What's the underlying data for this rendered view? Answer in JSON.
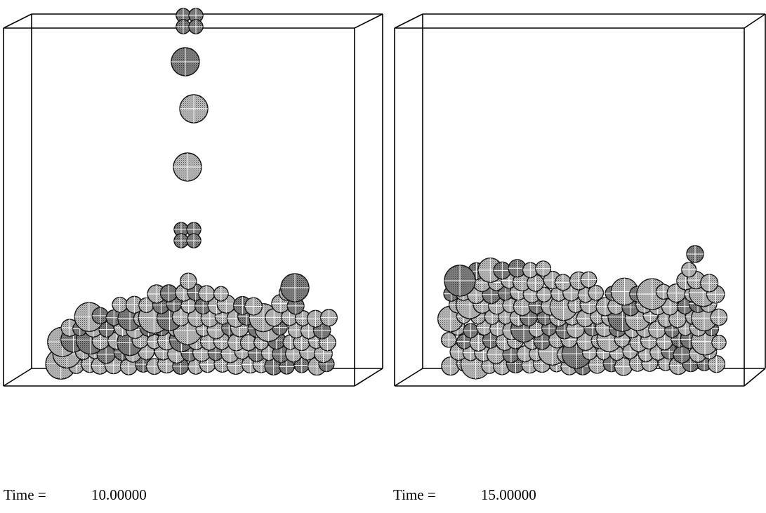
{
  "panels": [
    {
      "label": "Time =",
      "time": "10.00000"
    },
    {
      "label": "Time =",
      "time": "15.00000"
    }
  ]
}
